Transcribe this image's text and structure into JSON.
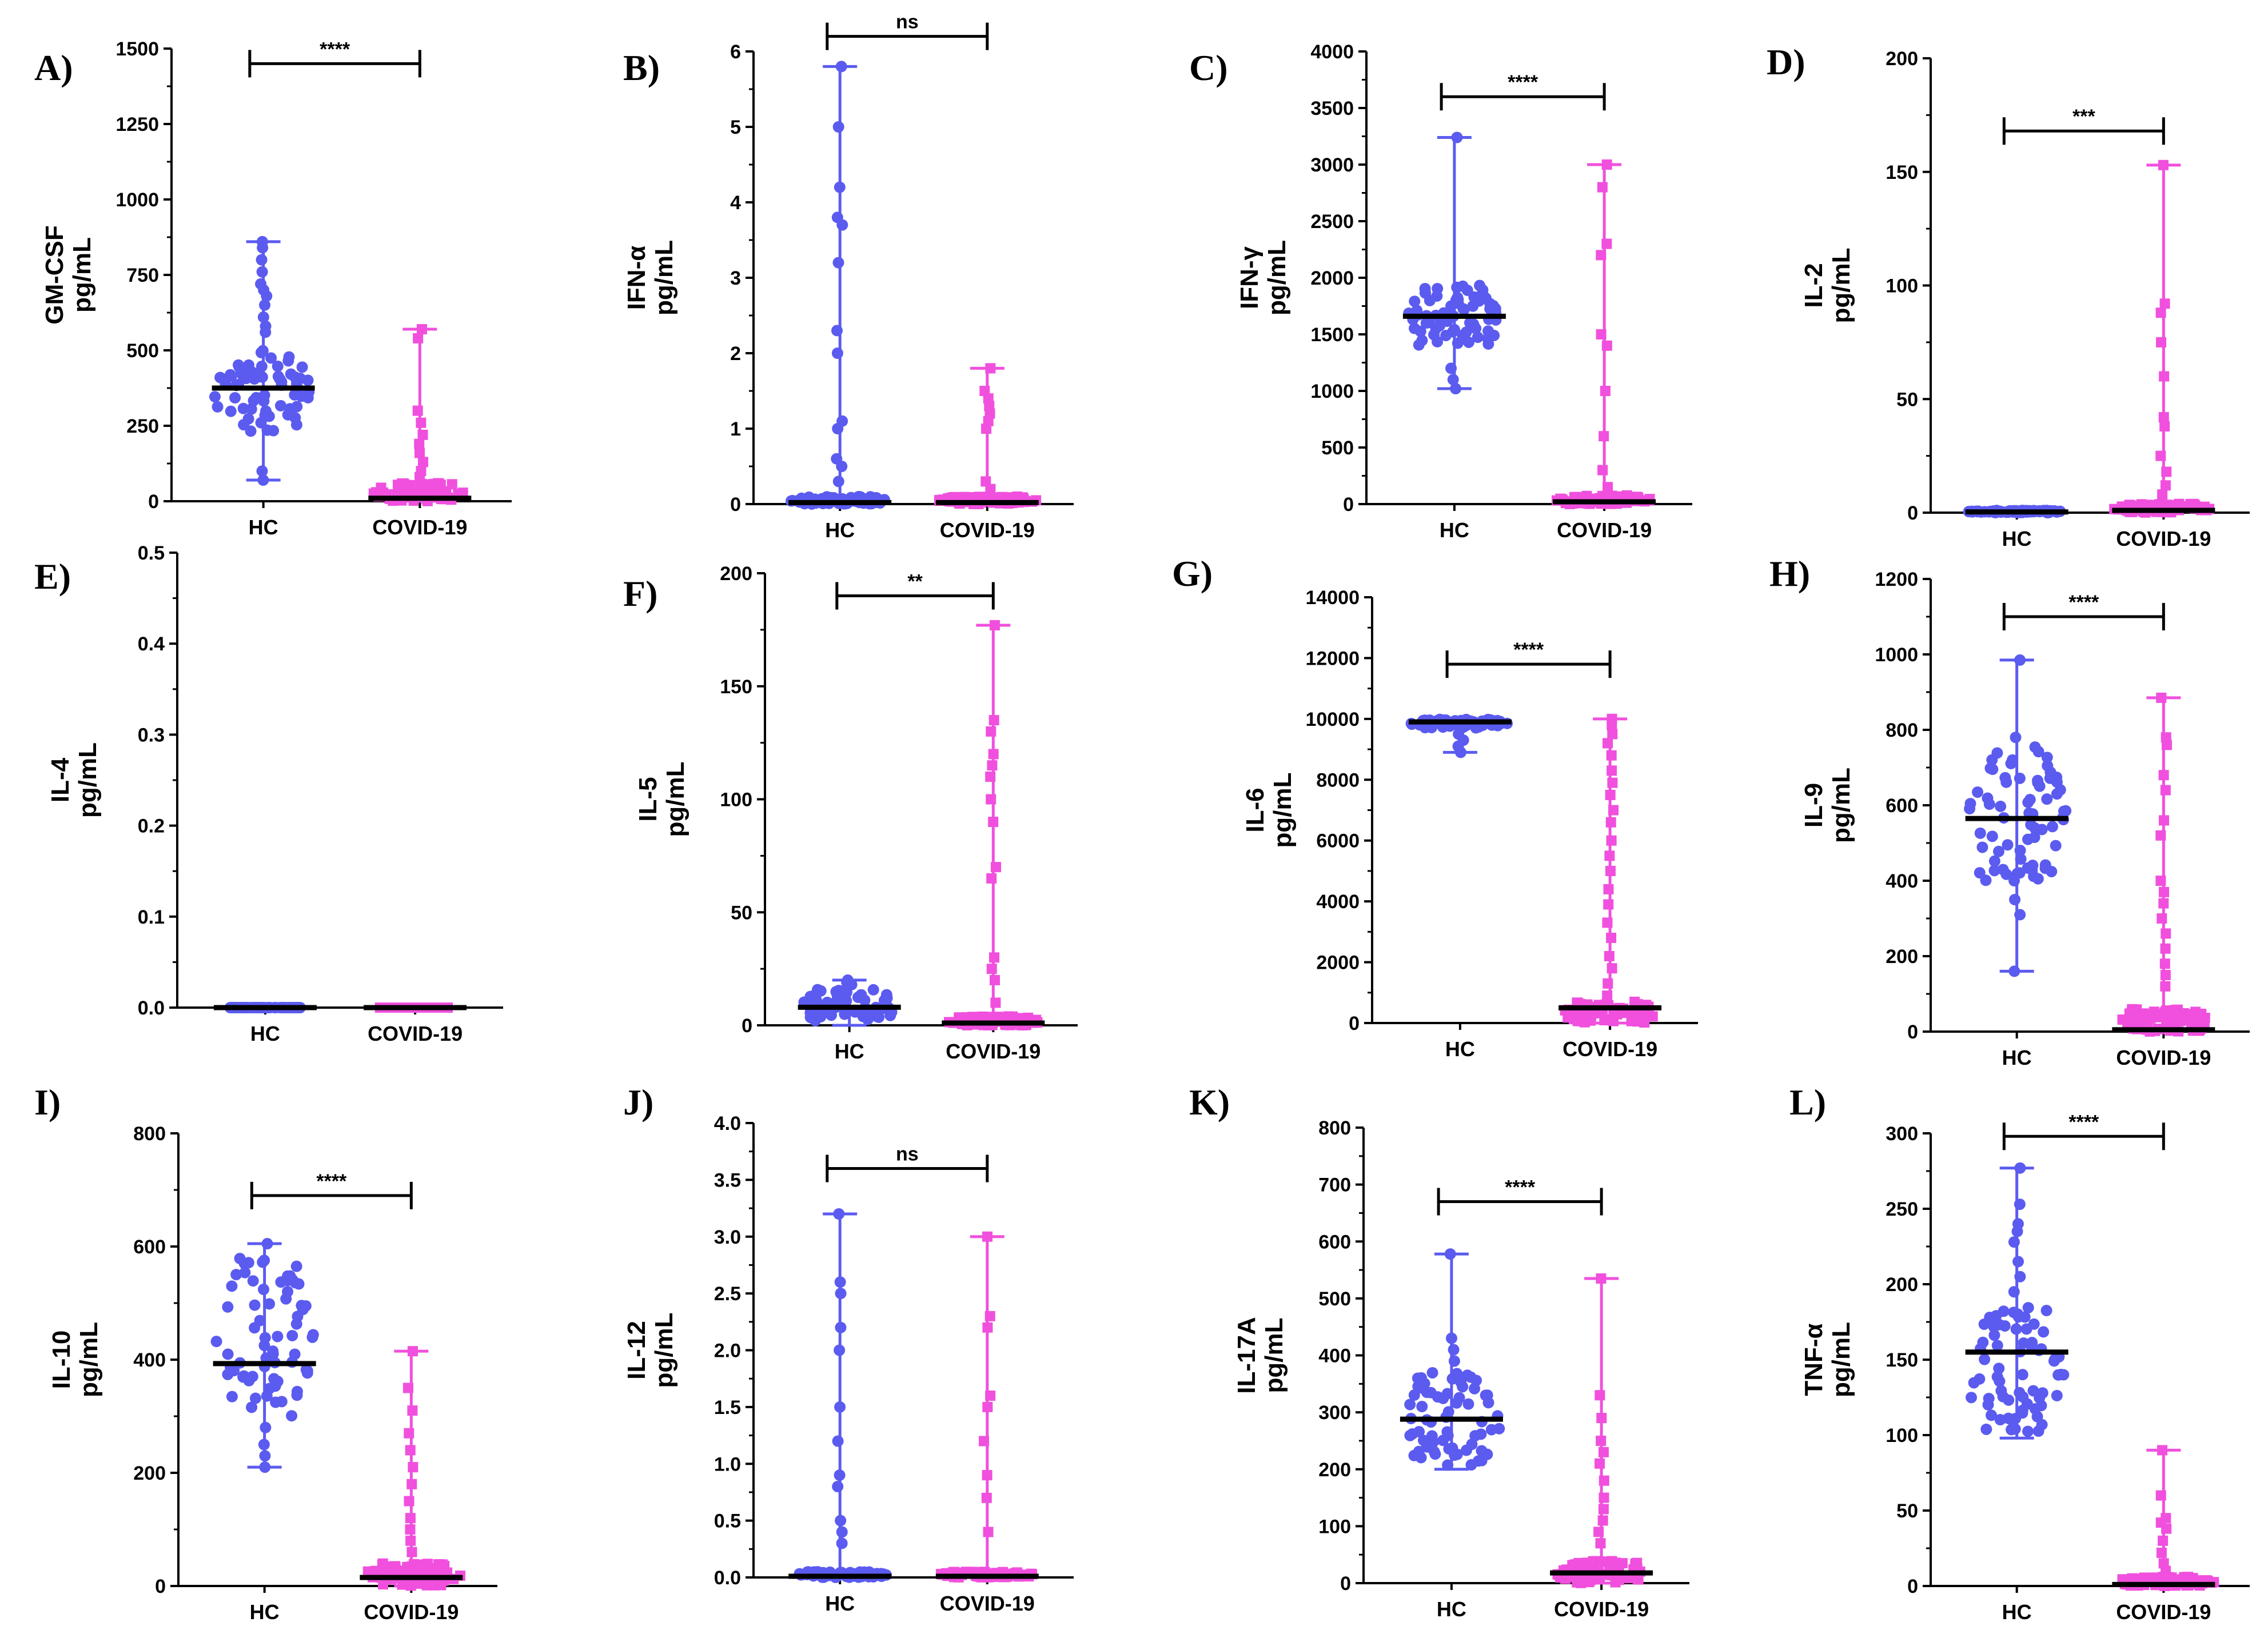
{
  "colors": {
    "hc": "#5b5bf0",
    "covid": "#f050dd",
    "axis": "#000000",
    "median": "#000000"
  },
  "chart_data": [
    {
      "letter": "A)",
      "title": "GM-CSF",
      "type": "scatter",
      "ylabel": [
        "GM-CSF",
        "pg/mL"
      ],
      "ylim": [
        0,
        1500
      ],
      "yticks": [
        "0",
        "250",
        "500",
        "750",
        "1000",
        "1250",
        "1500"
      ],
      "categories": [
        "HC",
        "COVID-19"
      ],
      "significance": "****",
      "sig_y": 1450,
      "series": [
        {
          "name": "HC",
          "min": 70,
          "max": 860,
          "median": 375,
          "low": 230,
          "high": 500,
          "extra": [
            860,
            840,
            800,
            760,
            720,
            700,
            680,
            650,
            610,
            580,
            560,
            100,
            70
          ]
        },
        {
          "name": "COVID-19",
          "min": 0,
          "max": 570,
          "median": 10,
          "low": 0,
          "high": 60,
          "extra": [
            570,
            540,
            300,
            260,
            220,
            190,
            160,
            130,
            100,
            80
          ]
        }
      ]
    },
    {
      "letter": "B)",
      "title": "IFN-α",
      "type": "scatter",
      "ylabel": [
        "IFN-α",
        "pg/mL"
      ],
      "ylim": [
        0,
        6
      ],
      "yticks": [
        "0",
        "1",
        "2",
        "3",
        "4",
        "5",
        "6"
      ],
      "categories": [
        "HC",
        "COVID-19"
      ],
      "significance": "ns",
      "sig_y": 6.2,
      "series": [
        {
          "name": "HC",
          "min": 0,
          "max": 5.8,
          "median": 0.02,
          "low": 0,
          "high": 0.1,
          "extra": [
            5.8,
            5.0,
            4.2,
            3.8,
            3.7,
            3.2,
            2.3,
            2.0,
            1.1,
            1.0,
            0.6,
            0.5,
            0.3
          ]
        },
        {
          "name": "COVID-19",
          "min": 0,
          "max": 1.8,
          "median": 0.02,
          "low": 0,
          "high": 0.1,
          "extra": [
            1.8,
            1.5,
            1.4,
            1.3,
            1.2,
            1.1,
            1.0,
            0.3,
            0.2
          ]
        }
      ]
    },
    {
      "letter": "C)",
      "title": "IFN-γ",
      "type": "scatter",
      "ylabel": [
        "IFN-γ",
        "pg/mL"
      ],
      "ylim": [
        0,
        4000
      ],
      "yticks": [
        "0",
        "500",
        "1000",
        "1500",
        "2000",
        "2500",
        "3000",
        "3500",
        "4000"
      ],
      "categories": [
        "HC",
        "COVID-19"
      ],
      "significance": "****",
      "sig_y": 3600,
      "series": [
        {
          "name": "HC",
          "min": 1020,
          "max": 3240,
          "median": 1660,
          "low": 1400,
          "high": 1950,
          "extra": [
            3240,
            1200,
            1100,
            1020
          ]
        },
        {
          "name": "COVID-19",
          "min": 0,
          "max": 3000,
          "median": 20,
          "low": 0,
          "high": 80,
          "extra": [
            3000,
            2800,
            2300,
            2200,
            1500,
            1400,
            1000,
            600,
            300,
            150
          ]
        }
      ]
    },
    {
      "letter": "D)",
      "title": "IL-2",
      "type": "scatter",
      "ylabel": [
        "IL-2",
        "pg/mL"
      ],
      "ylim": [
        0,
        200
      ],
      "yticks": [
        "0",
        "50",
        "100",
        "150",
        "200"
      ],
      "categories": [
        "HC",
        "COVID-19"
      ],
      "significance": "***",
      "sig_y": 168,
      "series": [
        {
          "name": "HC",
          "min": 0,
          "max": 1,
          "median": 0.3,
          "low": 0,
          "high": 1,
          "extra": []
        },
        {
          "name": "COVID-19",
          "min": 0,
          "max": 153,
          "median": 1,
          "low": 0,
          "high": 4,
          "extra": [
            153,
            92,
            88,
            75,
            60,
            42,
            38,
            25,
            18,
            12,
            8
          ]
        }
      ]
    },
    {
      "letter": "E)",
      "title": "IL-4",
      "type": "scatter",
      "ylabel": [
        "IL-4",
        "pg/mL"
      ],
      "ylim": [
        0,
        0.5
      ],
      "yticks": [
        "0.0",
        "0.1",
        "0.2",
        "0.3",
        "0.4",
        "0.5"
      ],
      "categories": [
        "HC",
        "COVID-19"
      ],
      "significance": "",
      "sig_y": 0,
      "series": [
        {
          "name": "HC",
          "min": 0,
          "max": 0,
          "median": 0,
          "low": 0,
          "high": 0,
          "extra": []
        },
        {
          "name": "COVID-19",
          "min": 0,
          "max": 0,
          "median": 0,
          "low": 0,
          "high": 0,
          "extra": []
        }
      ]
    },
    {
      "letter": "F)",
      "title": "IL-5",
      "type": "scatter",
      "ylabel": [
        "IL-5",
        "pg/mL"
      ],
      "ylim": [
        0,
        200
      ],
      "yticks": [
        "0",
        "50",
        "100",
        "150",
        "200"
      ],
      "categories": [
        "HC",
        "COVID-19"
      ],
      "significance": "**",
      "sig_y": 190,
      "series": [
        {
          "name": "HC",
          "min": 0,
          "max": 20,
          "median": 8,
          "low": 2,
          "high": 16,
          "extra": [
            20,
            19,
            18
          ]
        },
        {
          "name": "COVID-19",
          "min": 0,
          "max": 177,
          "median": 1,
          "low": 0,
          "high": 4,
          "extra": [
            177,
            135,
            130,
            120,
            115,
            110,
            100,
            90,
            70,
            65,
            30,
            25,
            20,
            10
          ]
        }
      ]
    },
    {
      "letter": "G)",
      "title": "IL-6",
      "type": "scatter",
      "ylabel": [
        "IL-6",
        "pg/mL"
      ],
      "ylim": [
        0,
        14000
      ],
      "yticks": [
        "0",
        "2000",
        "4000",
        "6000",
        "8000",
        "10000",
        "12000",
        "14000"
      ],
      "categories": [
        "HC",
        "COVID-19"
      ],
      "significance": "****",
      "sig_y": 11800,
      "series": [
        {
          "name": "HC",
          "min": 8900,
          "max": 10000,
          "median": 9900,
          "low": 9700,
          "high": 10000,
          "extra": [
            9500,
            9300,
            9100,
            8900
          ]
        },
        {
          "name": "COVID-19",
          "min": 0,
          "max": 10000,
          "median": 500,
          "low": 0,
          "high": 700,
          "extra": [
            10000,
            9800,
            9500,
            9200,
            8800,
            8300,
            7900,
            7500,
            7000,
            6600,
            6000,
            5500,
            5000,
            4400,
            3900,
            3300,
            2800,
            2200,
            1800,
            1300,
            900
          ]
        }
      ]
    },
    {
      "letter": "H)",
      "title": "IL-9",
      "type": "scatter",
      "ylabel": [
        "IL-9",
        "pg/mL"
      ],
      "ylim": [
        0,
        1200
      ],
      "yticks": [
        "0",
        "200",
        "400",
        "600",
        "800",
        "1000",
        "1200"
      ],
      "categories": [
        "HC",
        "COVID-19"
      ],
      "significance": "****",
      "sig_y": 1100,
      "series": [
        {
          "name": "HC",
          "min": 160,
          "max": 985,
          "median": 565,
          "low": 400,
          "high": 760,
          "extra": [
            985,
            780,
            350,
            310,
            160
          ]
        },
        {
          "name": "COVID-19",
          "min": 0,
          "max": 885,
          "median": 5,
          "low": 0,
          "high": 60,
          "extra": [
            885,
            780,
            760,
            680,
            640,
            560,
            520,
            400,
            370,
            340,
            300,
            260,
            220,
            180,
            150,
            120
          ]
        }
      ]
    },
    {
      "letter": "I)",
      "title": "IL-10",
      "type": "scatter",
      "ylabel": [
        "IL-10",
        "pg/mL"
      ],
      "ylim": [
        0,
        800
      ],
      "yticks": [
        "0",
        "200",
        "400",
        "600",
        "800"
      ],
      "categories": [
        "HC",
        "COVID-19"
      ],
      "significance": "****",
      "sig_y": 690,
      "series": [
        {
          "name": "HC",
          "min": 210,
          "max": 605,
          "median": 393,
          "low": 300,
          "high": 580,
          "extra": [
            605,
            280,
            250,
            230,
            210
          ]
        },
        {
          "name": "COVID-19",
          "min": 0,
          "max": 415,
          "median": 15,
          "low": 0,
          "high": 40,
          "extra": [
            415,
            350,
            310,
            270,
            240,
            210,
            180,
            150,
            120,
            100,
            80,
            60
          ]
        }
      ]
    },
    {
      "letter": "J)",
      "title": "IL-12",
      "type": "scatter",
      "ylabel": [
        "IL-12",
        "pg/mL"
      ],
      "ylim": [
        0,
        4
      ],
      "yticks": [
        "0.0",
        "0.5",
        "1.0",
        "1.5",
        "2.0",
        "2.5",
        "3.0",
        "3.5",
        "4.0"
      ],
      "categories": [
        "HC",
        "COVID-19"
      ],
      "significance": "ns",
      "sig_y": 3.6,
      "series": [
        {
          "name": "HC",
          "min": 0,
          "max": 3.2,
          "median": 0.01,
          "low": 0,
          "high": 0.05,
          "extra": [
            3.2,
            2.6,
            2.5,
            2.2,
            2.0,
            1.5,
            1.2,
            0.9,
            0.8,
            0.5,
            0.4,
            0.3
          ]
        },
        {
          "name": "COVID-19",
          "min": 0,
          "max": 3.0,
          "median": 0.01,
          "low": 0,
          "high": 0.05,
          "extra": [
            3.0,
            2.3,
            2.2,
            1.6,
            1.5,
            1.2,
            0.9,
            0.7,
            0.4
          ]
        }
      ]
    },
    {
      "letter": "K)",
      "title": "IL-17A",
      "type": "scatter",
      "ylabel": [
        "IL-17A",
        "pg/mL"
      ],
      "ylim": [
        0,
        800
      ],
      "yticks": [
        "0",
        "100",
        "200",
        "300",
        "400",
        "500",
        "600",
        "700",
        "800"
      ],
      "categories": [
        "HC",
        "COVID-19"
      ],
      "significance": "****",
      "sig_y": 670,
      "series": [
        {
          "name": "HC",
          "min": 200,
          "max": 578,
          "median": 288,
          "low": 205,
          "high": 370,
          "extra": [
            578,
            430,
            410,
            390
          ]
        },
        {
          "name": "COVID-19",
          "min": 0,
          "max": 535,
          "median": 18,
          "low": 0,
          "high": 40,
          "extra": [
            535,
            330,
            290,
            250,
            230,
            210,
            180,
            150,
            130,
            110,
            90,
            70
          ]
        }
      ]
    },
    {
      "letter": "L)",
      "title": "TNF-α",
      "type": "scatter",
      "ylabel": [
        "TNF-α",
        "pg/mL"
      ],
      "ylim": [
        0,
        300
      ],
      "yticks": [
        "0",
        "50",
        "100",
        "150",
        "200",
        "250",
        "300"
      ],
      "categories": [
        "HC",
        "COVID-19"
      ],
      "significance": "****",
      "sig_y": 298,
      "series": [
        {
          "name": "HC",
          "min": 98,
          "max": 277,
          "median": 155,
          "low": 100,
          "high": 185,
          "extra": [
            277,
            253,
            240,
            235,
            228,
            215,
            205,
            195
          ]
        },
        {
          "name": "COVID-19",
          "min": 0,
          "max": 90,
          "median": 1,
          "low": 0,
          "high": 6,
          "extra": [
            90,
            60,
            45,
            42,
            38,
            30,
            22,
            15,
            10
          ]
        }
      ]
    }
  ]
}
